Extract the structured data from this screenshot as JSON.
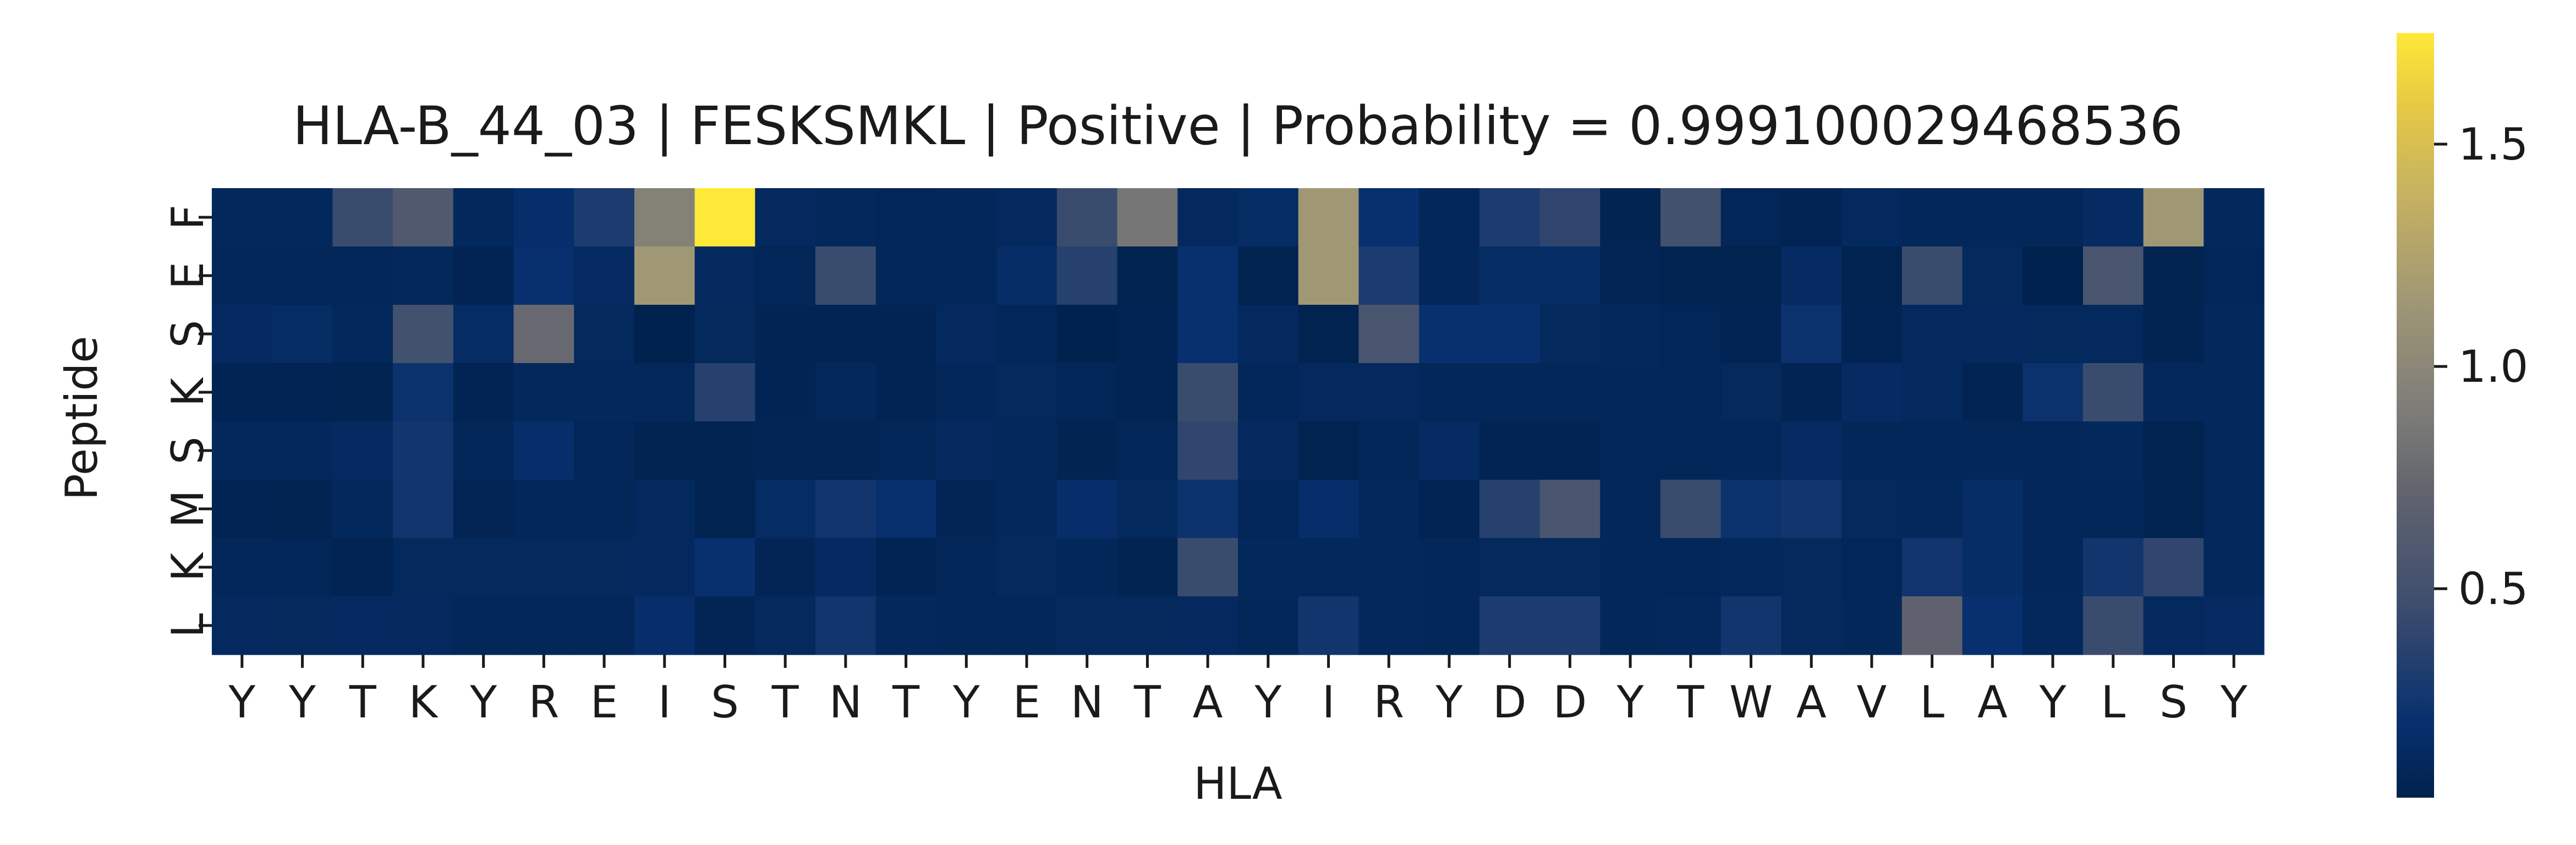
{
  "chart_data": {
    "type": "heatmap",
    "title": "HLA-B_44_03 | FESKSMKL | Positive | Probability = 0.999100029468536",
    "xlabel": "HLA",
    "ylabel": "Peptide",
    "x_categories": [
      "Y",
      "Y",
      "T",
      "K",
      "Y",
      "R",
      "E",
      "I",
      "S",
      "T",
      "N",
      "T",
      "Y",
      "E",
      "N",
      "T",
      "A",
      "Y",
      "I",
      "R",
      "Y",
      "D",
      "D",
      "Y",
      "T",
      "W",
      "A",
      "V",
      "L",
      "A",
      "Y",
      "L",
      "S",
      "Y"
    ],
    "y_categories": [
      "F",
      "E",
      "S",
      "K",
      "S",
      "M",
      "K",
      "L"
    ],
    "colormap": "cividis",
    "colorbar": {
      "range": [
        0.03,
        1.75
      ],
      "ticks": [
        0.5,
        1.0,
        1.5
      ],
      "tick_labels": [
        "0.5",
        "1.0",
        "1.5"
      ]
    },
    "values": [
      [
        0.1,
        0.1,
        0.45,
        0.6,
        0.1,
        0.18,
        0.3,
        0.95,
        1.75,
        0.12,
        0.1,
        0.08,
        0.09,
        0.12,
        0.45,
        0.85,
        0.12,
        0.15,
        1.15,
        0.2,
        0.09,
        0.3,
        0.4,
        0.05,
        0.5,
        0.08,
        0.06,
        0.12,
        0.09,
        0.09,
        0.09,
        0.14,
        1.15,
        0.1
      ],
      [
        0.08,
        0.08,
        0.08,
        0.1,
        0.06,
        0.2,
        0.14,
        1.15,
        0.12,
        0.08,
        0.45,
        0.09,
        0.09,
        0.16,
        0.35,
        0.04,
        0.2,
        0.04,
        1.15,
        0.3,
        0.09,
        0.15,
        0.16,
        0.07,
        0.04,
        0.04,
        0.14,
        0.04,
        0.45,
        0.11,
        0.03,
        0.55,
        0.04,
        0.08
      ],
      [
        0.13,
        0.15,
        0.1,
        0.5,
        0.15,
        0.75,
        0.11,
        0.03,
        0.11,
        0.06,
        0.06,
        0.06,
        0.12,
        0.08,
        0.03,
        0.06,
        0.2,
        0.12,
        0.04,
        0.55,
        0.2,
        0.2,
        0.11,
        0.1,
        0.08,
        0.06,
        0.22,
        0.06,
        0.12,
        0.12,
        0.11,
        0.12,
        0.05,
        0.1
      ],
      [
        0.06,
        0.06,
        0.05,
        0.22,
        0.06,
        0.1,
        0.1,
        0.1,
        0.35,
        0.06,
        0.1,
        0.06,
        0.09,
        0.11,
        0.08,
        0.06,
        0.45,
        0.09,
        0.12,
        0.12,
        0.09,
        0.09,
        0.09,
        0.09,
        0.08,
        0.11,
        0.06,
        0.14,
        0.12,
        0.06,
        0.22,
        0.45,
        0.1,
        0.1
      ],
      [
        0.1,
        0.1,
        0.13,
        0.25,
        0.09,
        0.18,
        0.08,
        0.05,
        0.05,
        0.07,
        0.07,
        0.08,
        0.12,
        0.1,
        0.05,
        0.08,
        0.4,
        0.12,
        0.04,
        0.09,
        0.14,
        0.06,
        0.06,
        0.08,
        0.08,
        0.09,
        0.14,
        0.09,
        0.09,
        0.09,
        0.09,
        0.1,
        0.04,
        0.1
      ],
      [
        0.06,
        0.05,
        0.1,
        0.25,
        0.07,
        0.09,
        0.09,
        0.12,
        0.04,
        0.15,
        0.25,
        0.2,
        0.07,
        0.1,
        0.18,
        0.11,
        0.22,
        0.08,
        0.18,
        0.1,
        0.06,
        0.35,
        0.55,
        0.09,
        0.45,
        0.22,
        0.25,
        0.11,
        0.1,
        0.16,
        0.09,
        0.08,
        0.04,
        0.1
      ],
      [
        0.09,
        0.08,
        0.06,
        0.11,
        0.11,
        0.11,
        0.11,
        0.12,
        0.2,
        0.07,
        0.13,
        0.06,
        0.08,
        0.11,
        0.09,
        0.05,
        0.45,
        0.1,
        0.1,
        0.1,
        0.09,
        0.11,
        0.11,
        0.09,
        0.08,
        0.1,
        0.11,
        0.08,
        0.25,
        0.16,
        0.09,
        0.25,
        0.4,
        0.1
      ],
      [
        0.12,
        0.11,
        0.13,
        0.12,
        0.09,
        0.09,
        0.09,
        0.18,
        0.07,
        0.11,
        0.25,
        0.1,
        0.09,
        0.09,
        0.11,
        0.11,
        0.12,
        0.09,
        0.25,
        0.1,
        0.09,
        0.3,
        0.3,
        0.09,
        0.1,
        0.25,
        0.11,
        0.09,
        0.7,
        0.2,
        0.1,
        0.45,
        0.12,
        0.14
      ]
    ]
  }
}
